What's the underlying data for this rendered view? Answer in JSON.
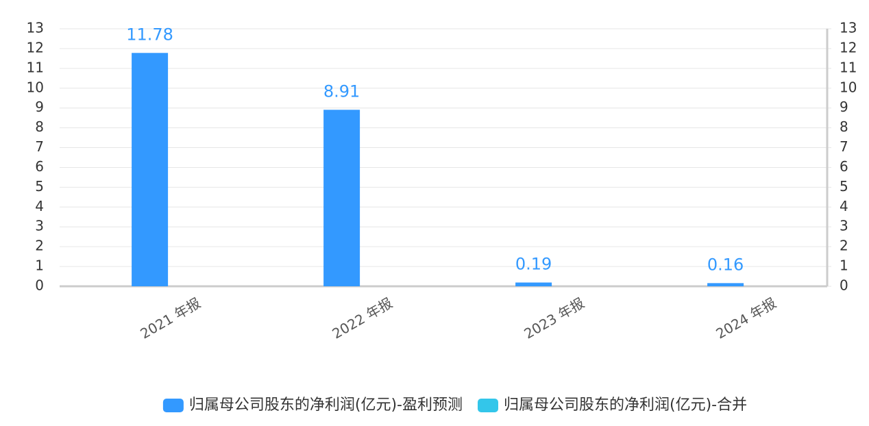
{
  "chart_data": {
    "type": "bar",
    "categories": [
      "2021 年报",
      "2022 年报",
      "2023 年报",
      "2024 年报"
    ],
    "series": [
      {
        "name": "归属母公司股东的净利润(亿元)-盈利预测",
        "color": "#3399ff",
        "values": [
          11.78,
          8.91,
          0.19,
          0.16
        ]
      },
      {
        "name": "归属母公司股东的净利润(亿元)-合并",
        "color": "#33c6ea",
        "values": [
          null,
          null,
          null,
          null
        ],
        "axis": "y2"
      }
    ],
    "ylim": [
      0,
      13
    ],
    "yticks": [
      0,
      1,
      2,
      3,
      4,
      5,
      6,
      7,
      8,
      9,
      10,
      11,
      12,
      13
    ],
    "y2lim": [
      0,
      13
    ],
    "y2ticks": [
      0,
      1,
      2,
      3,
      4,
      5,
      6,
      7,
      8,
      9,
      10,
      11,
      12,
      13
    ],
    "grid": true,
    "data_labels": true,
    "legend": "bottom"
  }
}
